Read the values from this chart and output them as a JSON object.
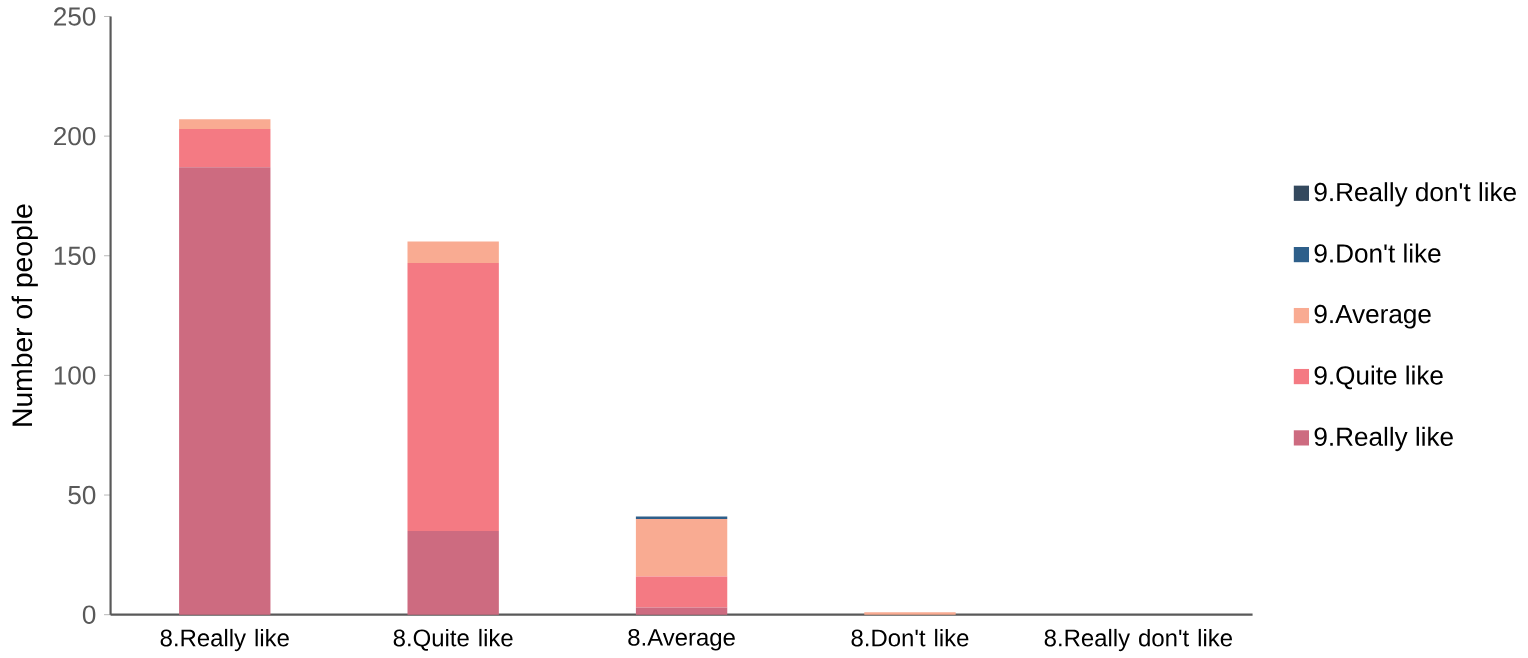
{
  "chart_data": {
    "type": "bar",
    "stacked": true,
    "ylabel": "Number of people",
    "categories": [
      "8.Really like",
      "8.Quite like",
      "8.Average",
      "8.Don't like",
      "8.Really don't like"
    ],
    "series": [
      {
        "name": "9.Really like",
        "color": "#cd6b80",
        "values": [
          187,
          35,
          3,
          0,
          0
        ]
      },
      {
        "name": "9.Quite like",
        "color": "#f47a83",
        "values": [
          16,
          112,
          13,
          0,
          0
        ]
      },
      {
        "name": "9.Average",
        "color": "#f9ab92",
        "values": [
          4,
          9,
          24,
          1,
          0
        ]
      },
      {
        "name": "9.Don't like",
        "color": "#2e5f8a",
        "values": [
          0,
          0,
          1,
          0,
          0
        ]
      },
      {
        "name": "9.Really don't like",
        "color": "#34495e",
        "values": [
          0,
          0,
          0,
          0,
          0
        ]
      }
    ],
    "ylim": [
      0,
      250
    ],
    "yticks": [
      0,
      50,
      100,
      150,
      200,
      250
    ],
    "grid": false,
    "legend": "right"
  }
}
